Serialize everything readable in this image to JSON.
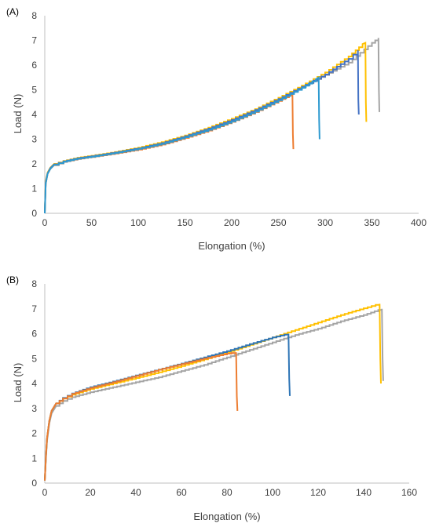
{
  "chart_data": [
    {
      "panel_label": "(A)",
      "type": "line",
      "xlabel": "Elongation (%)",
      "ylabel": "Load (N)",
      "xlim": [
        0,
        400
      ],
      "ylim": [
        0,
        8
      ],
      "x_ticks": [
        "0",
        "50",
        "100",
        "150",
        "200",
        "250",
        "300",
        "350",
        "400"
      ],
      "y_ticks": [
        "0",
        "1",
        "2",
        "3",
        "4",
        "5",
        "6",
        "7",
        "8"
      ],
      "grid": false,
      "legend": "none",
      "series": [
        {
          "color": "#ED7D31",
          "x": [
            0,
            1,
            3,
            6,
            10,
            20,
            35,
            50,
            75,
            100,
            125,
            150,
            175,
            200,
            225,
            250,
            265,
            265.5,
            266
          ],
          "y": [
            0,
            1.2,
            1.6,
            1.8,
            1.95,
            2.08,
            2.2,
            2.28,
            2.42,
            2.58,
            2.78,
            3.05,
            3.35,
            3.7,
            4.1,
            4.55,
            4.85,
            3.2,
            2.6
          ]
        },
        {
          "color": "#A5A5A5",
          "x": [
            0,
            1,
            3,
            6,
            10,
            20,
            35,
            50,
            75,
            100,
            125,
            150,
            175,
            200,
            225,
            250,
            275,
            300,
            325,
            350,
            357,
            357.5,
            358
          ],
          "y": [
            0,
            1.25,
            1.6,
            1.82,
            1.97,
            2.1,
            2.22,
            2.3,
            2.45,
            2.62,
            2.82,
            3.1,
            3.4,
            3.75,
            4.15,
            4.6,
            5.1,
            5.6,
            6.1,
            6.9,
            7.1,
            5.0,
            4.1
          ]
        },
        {
          "color": "#FFC000",
          "x": [
            0,
            1,
            3,
            6,
            10,
            20,
            35,
            50,
            75,
            100,
            125,
            150,
            175,
            200,
            225,
            250,
            275,
            300,
            325,
            340,
            343,
            343.5,
            344
          ],
          "y": [
            0,
            1.3,
            1.65,
            1.85,
            2.0,
            2.12,
            2.25,
            2.33,
            2.48,
            2.66,
            2.88,
            3.15,
            3.47,
            3.83,
            4.22,
            4.68,
            5.17,
            5.7,
            6.35,
            6.85,
            6.9,
            4.5,
            3.7
          ]
        },
        {
          "color": "#4472C4",
          "x": [
            0,
            1,
            3,
            6,
            10,
            20,
            35,
            50,
            75,
            100,
            125,
            150,
            175,
            200,
            225,
            250,
            275,
            300,
            325,
            335,
            335.5,
            336
          ],
          "y": [
            0,
            1.25,
            1.62,
            1.83,
            1.98,
            2.1,
            2.23,
            2.31,
            2.46,
            2.63,
            2.84,
            3.12,
            3.43,
            3.78,
            4.18,
            4.63,
            5.12,
            5.62,
            6.25,
            6.6,
            4.6,
            4.0
          ]
        },
        {
          "color": "#2E9AD0",
          "x": [
            0,
            1,
            3,
            6,
            10,
            20,
            35,
            50,
            75,
            100,
            125,
            150,
            175,
            200,
            225,
            250,
            275,
            290,
            293,
            293.5,
            294
          ],
          "y": [
            0,
            1.2,
            1.6,
            1.8,
            1.96,
            2.09,
            2.21,
            2.29,
            2.44,
            2.61,
            2.81,
            3.08,
            3.38,
            3.72,
            4.12,
            4.58,
            5.08,
            5.42,
            5.5,
            3.8,
            3.0
          ]
        }
      ]
    },
    {
      "panel_label": "(B)",
      "type": "line",
      "xlabel": "Elongation (%)",
      "ylabel": "Load (N)",
      "xlim": [
        0,
        160
      ],
      "ylim": [
        0,
        8
      ],
      "x_ticks": [
        "0",
        "20",
        "40",
        "60",
        "80",
        "100",
        "120",
        "140",
        "160"
      ],
      "y_ticks": [
        "0",
        "1",
        "2",
        "3",
        "4",
        "5",
        "6",
        "7",
        "8"
      ],
      "grid": false,
      "legend": "none",
      "series": [
        {
          "color": "#A5A5A5",
          "x": [
            0,
            0.5,
            1,
            2,
            3,
            5,
            8,
            12,
            20,
            30,
            40,
            50,
            60,
            70,
            80,
            90,
            100,
            110,
            120,
            130,
            140,
            148,
            148.3,
            148.6
          ],
          "y": [
            0.1,
            1.0,
            1.7,
            2.4,
            2.8,
            3.1,
            3.3,
            3.45,
            3.65,
            3.85,
            4.05,
            4.25,
            4.5,
            4.75,
            5.05,
            5.35,
            5.65,
            5.95,
            6.2,
            6.5,
            6.75,
            7.0,
            5.0,
            4.1
          ]
        },
        {
          "color": "#FFC000",
          "x": [
            0,
            0.5,
            1,
            2,
            3,
            5,
            8,
            12,
            20,
            30,
            40,
            50,
            60,
            70,
            80,
            90,
            100,
            110,
            120,
            130,
            140,
            147,
            147.3,
            147.6
          ],
          "y": [
            0.1,
            1.1,
            1.8,
            2.5,
            2.9,
            3.2,
            3.4,
            3.55,
            3.78,
            4.0,
            4.22,
            4.45,
            4.7,
            4.97,
            5.25,
            5.55,
            5.85,
            6.15,
            6.45,
            6.75,
            7.02,
            7.2,
            5.0,
            4.0
          ]
        },
        {
          "color": "#2E75B6",
          "x": [
            0,
            0.5,
            1,
            2,
            3,
            5,
            8,
            12,
            20,
            30,
            40,
            50,
            60,
            70,
            80,
            90,
            100,
            107,
            107.3,
            107.6
          ],
          "y": [
            0.1,
            1.1,
            1.8,
            2.5,
            2.9,
            3.2,
            3.42,
            3.6,
            3.85,
            4.08,
            4.32,
            4.56,
            4.8,
            5.05,
            5.3,
            5.58,
            5.85,
            6.0,
            4.2,
            3.5
          ]
        },
        {
          "color": "#ED7D31",
          "x": [
            0,
            0.5,
            1,
            2,
            3,
            5,
            8,
            12,
            20,
            30,
            40,
            50,
            60,
            70,
            80,
            84,
            84.3,
            84.6
          ],
          "y": [
            0.1,
            1.1,
            1.8,
            2.5,
            2.9,
            3.2,
            3.4,
            3.58,
            3.82,
            4.05,
            4.3,
            4.55,
            4.78,
            5.0,
            5.2,
            5.25,
            3.5,
            2.9
          ]
        }
      ]
    }
  ]
}
